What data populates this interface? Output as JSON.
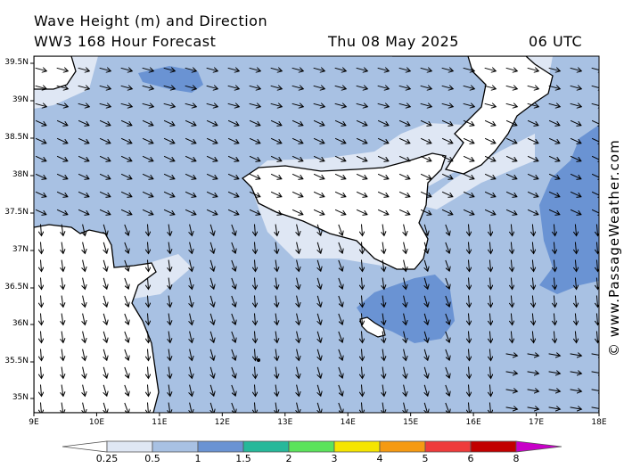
{
  "header": {
    "title": "Wave Height (m) and Direction",
    "model": "WW3 168 Hour Forecast",
    "date": "Thu 08 May 2025",
    "time": "06 UTC"
  },
  "axes": {
    "lat_labels": [
      "39.5N",
      "39N",
      "38.5N",
      "38N",
      "37.5N",
      "37N",
      "36.5N",
      "36N",
      "35.5N",
      "35N"
    ],
    "lon_labels": [
      "9E",
      "10E",
      "11E",
      "12E",
      "13E",
      "14E",
      "15E",
      "16E",
      "17E",
      "18E"
    ]
  },
  "legend": {
    "labels": [
      "0.25",
      "0.5",
      "1",
      "1.5",
      "2",
      "3",
      "4",
      "5",
      "6",
      "8"
    ],
    "colors": [
      "#ffffff",
      "#dfe7f4",
      "#a8c1e3",
      "#6a93d3",
      "#26b89a",
      "#5be35b",
      "#f5e500",
      "#f59a12",
      "#ee3b3b",
      "#c20000",
      "#c800c8"
    ]
  },
  "map_colors": {
    "land": "#ffffff",
    "sea_low": "#dfe7f4",
    "sea_mid": "#a8c1e3",
    "sea_high": "#6a93d3"
  },
  "credit": "© www.PassageWeather.com"
}
